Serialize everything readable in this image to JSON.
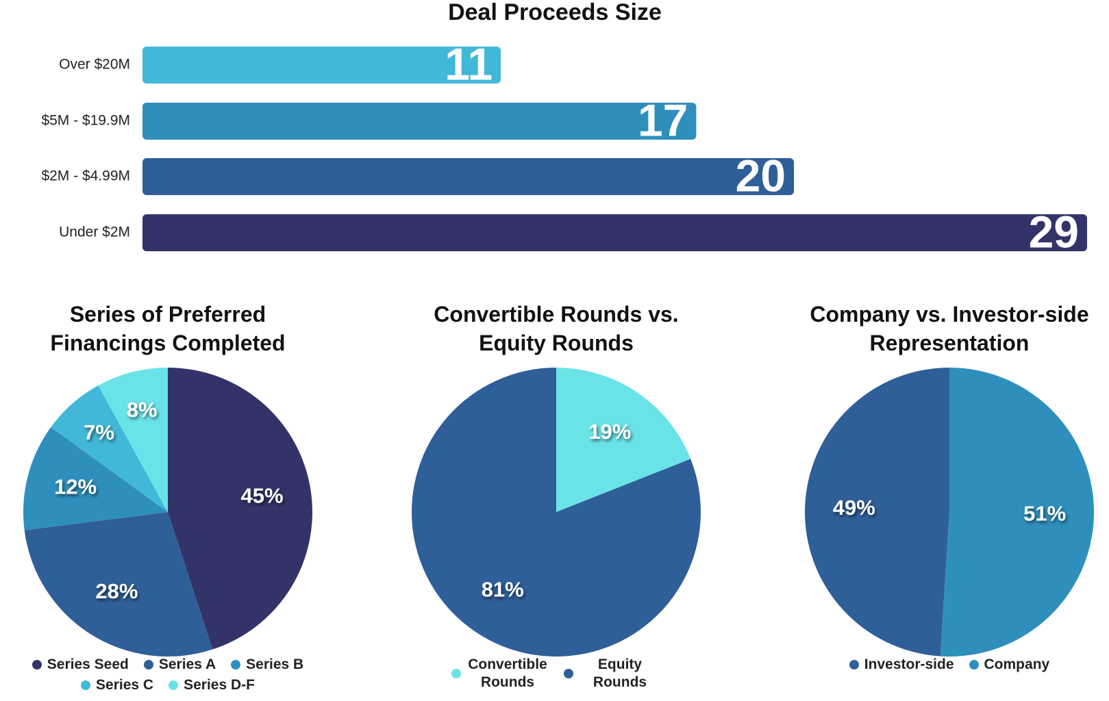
{
  "chart_data": [
    {
      "type": "bar",
      "orientation": "horizontal",
      "title": "Deal Proceeds Size",
      "categories": [
        "Over $20M",
        "$5M - $19.9M",
        "$2M - $4.99M",
        "Under $2M"
      ],
      "values": [
        11,
        17,
        20,
        29
      ],
      "colors": [
        "#42b8d8",
        "#2e8fbc",
        "#2f5f98",
        "#323469"
      ]
    },
    {
      "type": "pie",
      "title": "Series of Preferred Financings Completed",
      "categories": [
        "Series Seed",
        "Series A",
        "Series B",
        "Series C",
        "Series D-F"
      ],
      "values": [
        45,
        28,
        12,
        7,
        8
      ],
      "value_labels": [
        "45%",
        "28%",
        "12%",
        "7%",
        "8%"
      ],
      "colors": [
        "#323469",
        "#2f5f98",
        "#2e8fbc",
        "#42b8d8",
        "#6ae3e8"
      ],
      "direction": "clockwise"
    },
    {
      "type": "pie",
      "title": "Convertible Rounds vs. Equity Rounds",
      "categories": [
        "Convertible Rounds",
        "Equity Rounds"
      ],
      "values": [
        19,
        81
      ],
      "value_labels": [
        "19%",
        "81%"
      ],
      "colors": [
        "#6ae3e8",
        "#2f5f98"
      ],
      "direction": "clockwise"
    },
    {
      "type": "pie",
      "title": "Company vs. Investor-side Representation",
      "categories": [
        "Investor-side",
        "Company"
      ],
      "values": [
        49,
        51
      ],
      "value_labels": [
        "49%",
        "51%"
      ],
      "colors": [
        "#2f5f98",
        "#2e8fbc"
      ],
      "direction": "counterclockwise"
    }
  ]
}
